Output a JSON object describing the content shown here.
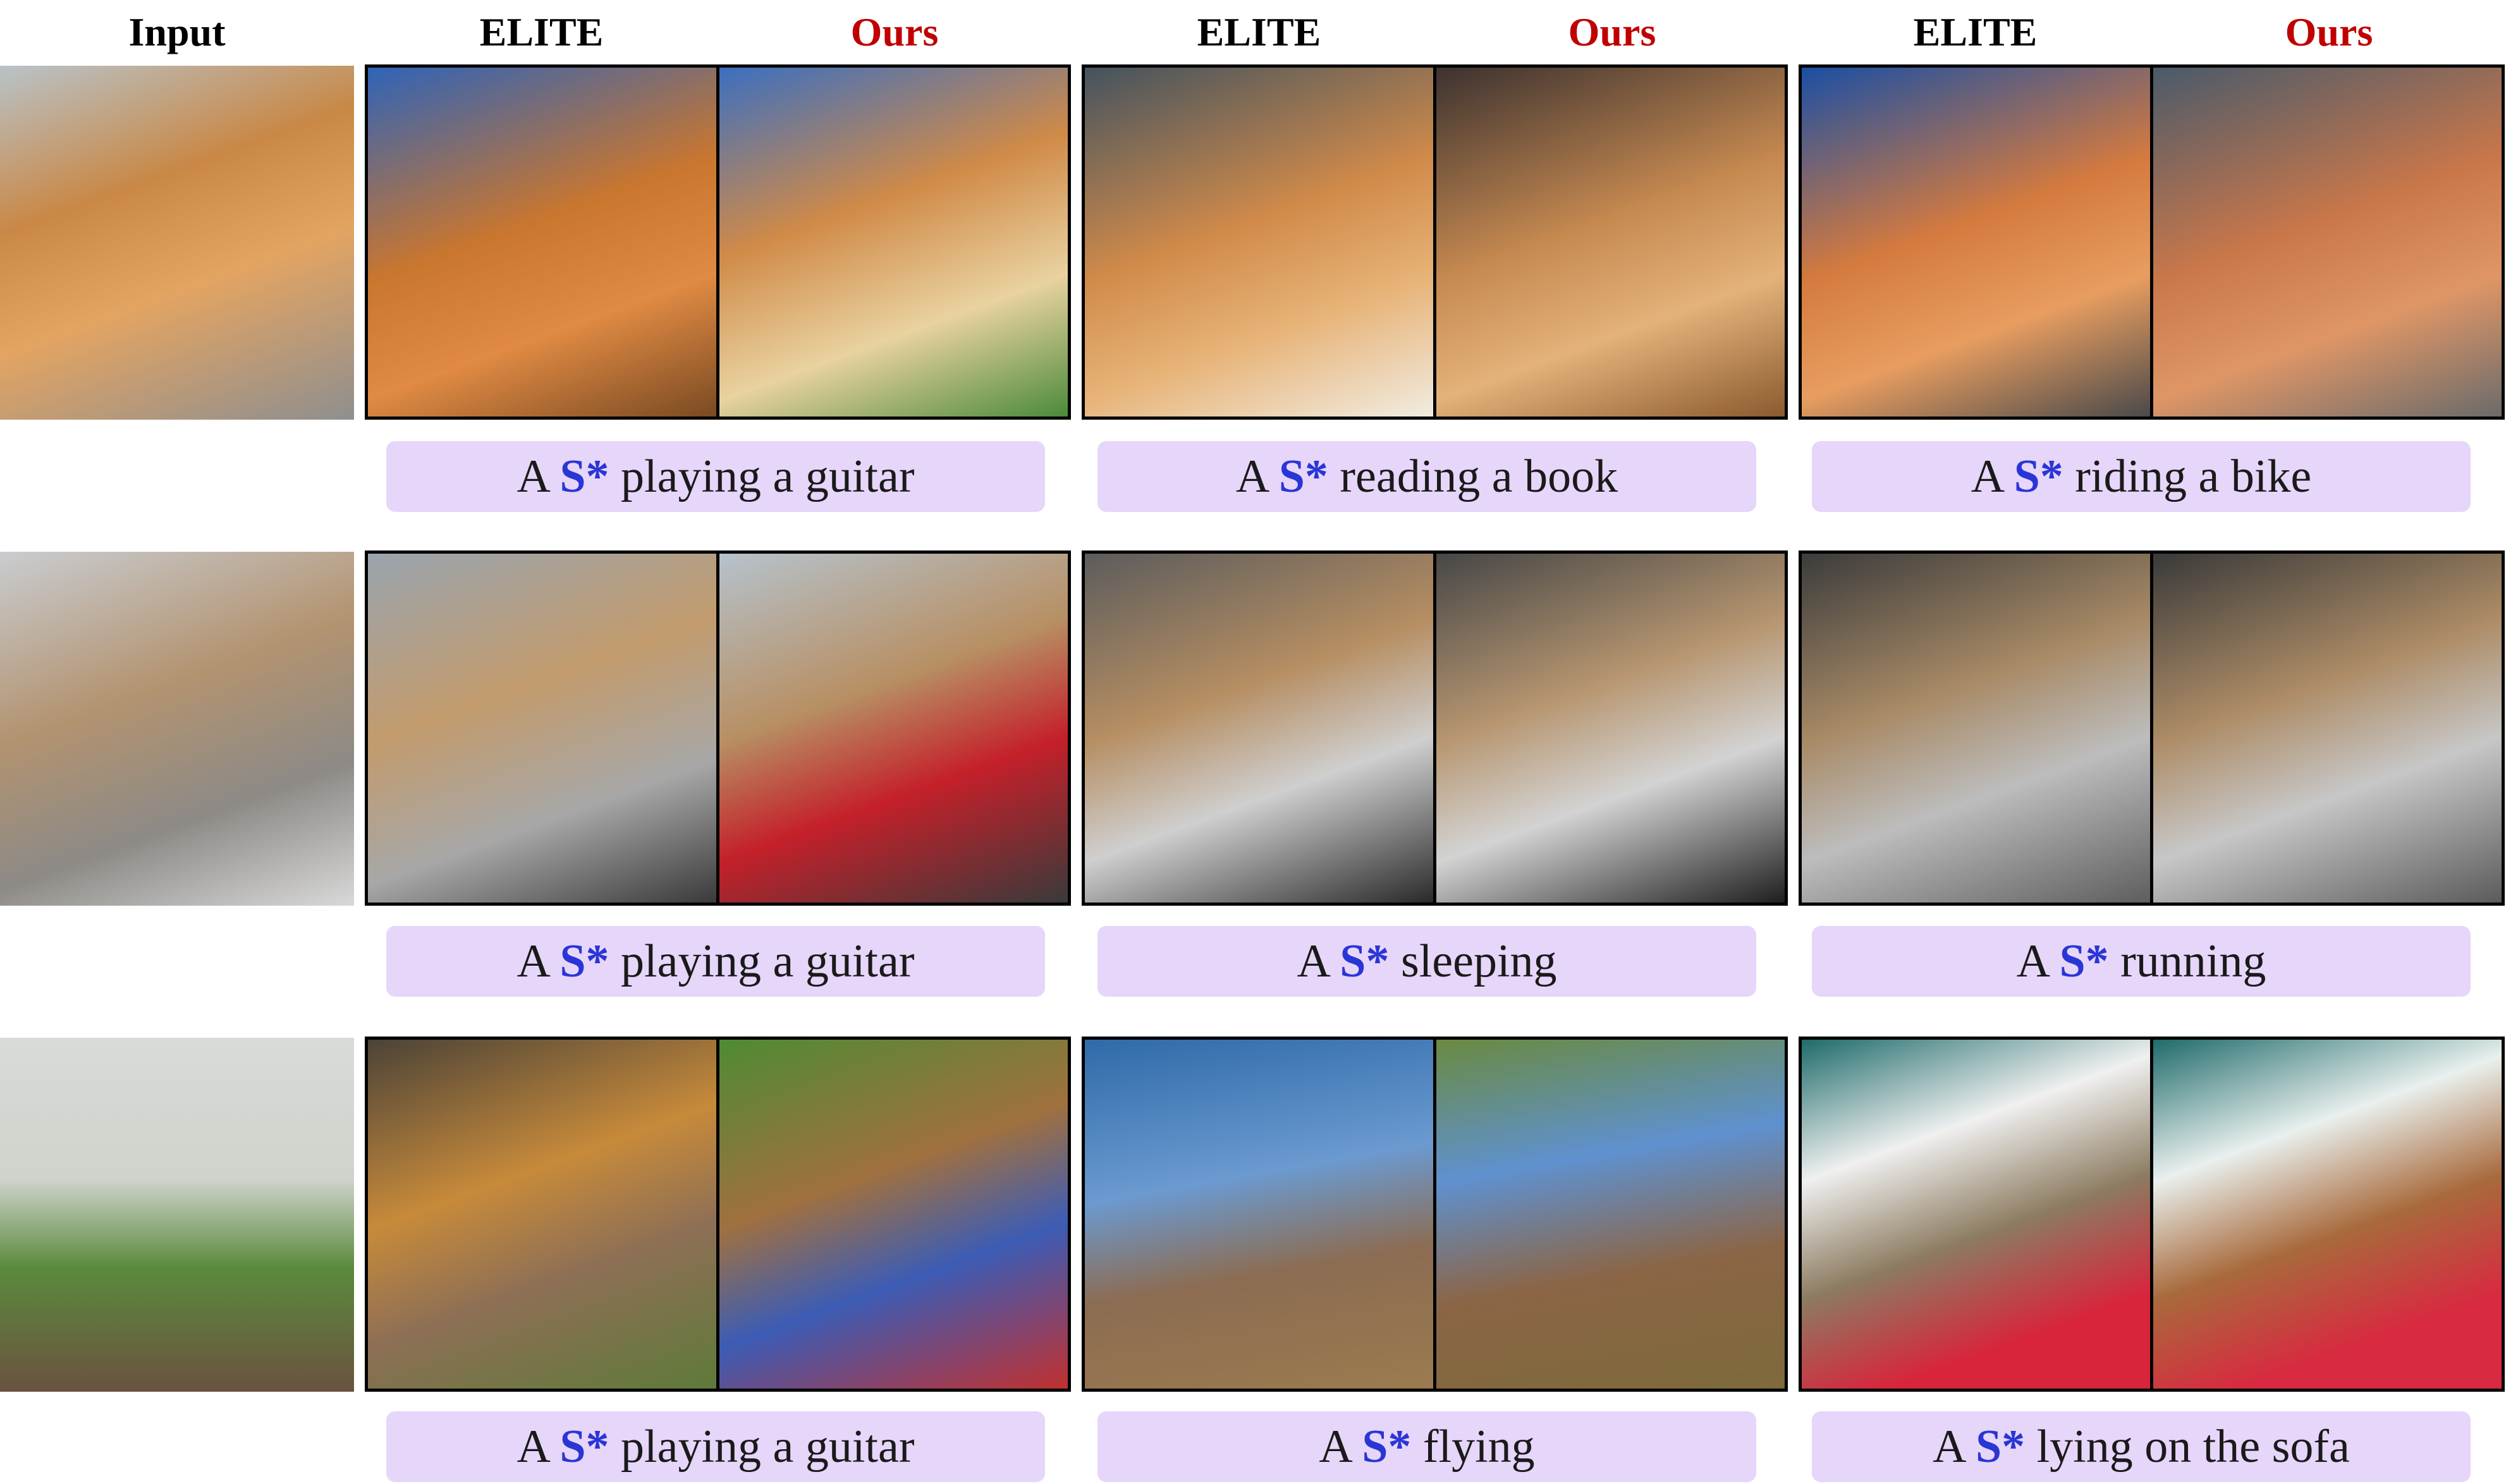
{
  "headers": {
    "input": "Input",
    "method_a": "ELITE",
    "method_b": "Ours"
  },
  "rows": [
    {
      "input_image": "fluffy-chow-chow-dog-photo",
      "captions": [
        {
          "prefix": "A",
          "token": "S*",
          "text": "playing a guitar"
        },
        {
          "prefix": "A",
          "token": "S*",
          "text": "reading a book"
        },
        {
          "prefix": "A",
          "token": "S*",
          "text": "riding a bike"
        }
      ]
    },
    {
      "input_image": "fluffy-kitten-photo",
      "captions": [
        {
          "prefix": "A",
          "token": "S*",
          "text": "playing a guitar"
        },
        {
          "prefix": "A",
          "token": "S*",
          "text": "sleeping"
        },
        {
          "prefix": "A",
          "token": "S*",
          "text": "running"
        }
      ]
    },
    {
      "input_image": "weimaraner-dog-on-stump-photo",
      "captions": [
        {
          "prefix": "A",
          "token": "S*",
          "text": "playing a guitar"
        },
        {
          "prefix": "A",
          "token": "S*",
          "text": "flying"
        },
        {
          "prefix": "A",
          "token": "S*",
          "text": "lying on the sofa"
        }
      ]
    }
  ],
  "colors": {
    "ours_header": "#c00000",
    "token": "#2a35d6",
    "caption_bg": "#e6d6fa",
    "frame": "#000000"
  }
}
